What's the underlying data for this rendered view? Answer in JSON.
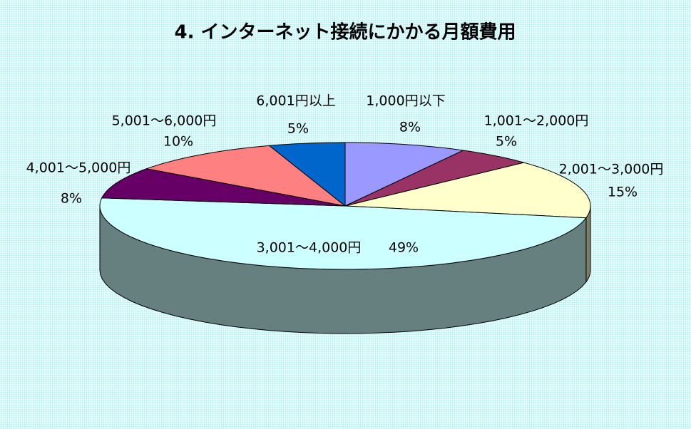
{
  "chart_data": {
    "type": "pie",
    "title": "4. インターネット接続にかかる月額費用",
    "categories": [
      "1,000円以下",
      "1,001～2,000円",
      "2,001～3,000円",
      "3,001～4,000円",
      "4,001～5,000円",
      "5,001～6,000円",
      "6,001円以上"
    ],
    "values": [
      8,
      5,
      15,
      49,
      8,
      10,
      5
    ],
    "value_labels": [
      "8%",
      "5%",
      "15%",
      "49%",
      "8%",
      "10%",
      "5%"
    ],
    "colors": [
      "#9999ff",
      "#993366",
      "#ffffcc",
      "#ccffff",
      "#660066",
      "#ff8080",
      "#0066cc"
    ]
  }
}
